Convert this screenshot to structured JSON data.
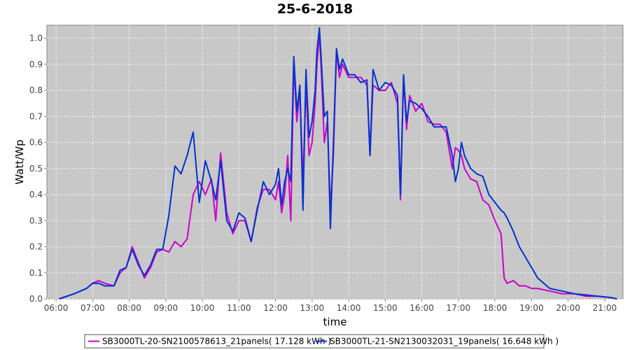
{
  "chart_data": {
    "type": "line",
    "title": "25-6-2018",
    "xlabel": "time",
    "ylabel": "Watt/Wp",
    "xlim": [
      "05:45",
      "21:30"
    ],
    "ylim": [
      0,
      1.05
    ],
    "x_ticks": [
      "06:00",
      "07:00",
      "08:00",
      "09:00",
      "10:00",
      "11:00",
      "12:00",
      "13:00",
      "14:00",
      "15:00",
      "16:00",
      "17:00",
      "18:00",
      "19:00",
      "20:00",
      "21:00"
    ],
    "y_ticks": [
      0.0,
      0.1,
      0.2,
      0.3,
      0.4,
      0.5,
      0.6,
      0.7,
      0.8,
      0.9,
      1.0
    ],
    "grid": true,
    "legend": "bottom",
    "plot_background": "#c8c8c8",
    "series": [
      {
        "name": "SB3000TL-20-SN2100578613_21panels( 17.128 kWh )",
        "color": "#cc00cc",
        "x": [
          "06:05",
          "06:30",
          "06:50",
          "07:00",
          "07:10",
          "07:20",
          "07:35",
          "07:45",
          "07:55",
          "08:05",
          "08:15",
          "08:25",
          "08:35",
          "08:45",
          "08:55",
          "09:05",
          "09:15",
          "09:25",
          "09:35",
          "09:45",
          "09:55",
          "10:05",
          "10:15",
          "10:22",
          "10:30",
          "10:40",
          "10:50",
          "11:00",
          "11:10",
          "11:20",
          "11:30",
          "11:40",
          "11:50",
          "12:00",
          "12:05",
          "12:10",
          "12:15",
          "12:20",
          "12:25",
          "12:30",
          "12:35",
          "12:40",
          "12:45",
          "12:50",
          "12:55",
          "13:00",
          "13:05",
          "13:08",
          "13:12",
          "13:15",
          "13:20",
          "13:25",
          "13:30",
          "13:35",
          "13:40",
          "13:45",
          "13:50",
          "14:00",
          "14:10",
          "14:20",
          "14:30",
          "14:35",
          "14:40",
          "14:50",
          "15:00",
          "15:10",
          "15:20",
          "15:25",
          "15:30",
          "15:35",
          "15:40",
          "15:50",
          "16:00",
          "16:10",
          "16:20",
          "16:30",
          "16:40",
          "16:50",
          "16:55",
          "17:00",
          "17:05",
          "17:10",
          "17:20",
          "17:30",
          "17:40",
          "17:50",
          "18:00",
          "18:10",
          "18:15",
          "18:20",
          "18:30",
          "18:40",
          "18:50",
          "19:00",
          "19:10",
          "19:30",
          "19:50",
          "20:10",
          "20:30",
          "20:50",
          "21:10",
          "21:20"
        ],
        "y": [
          0.0,
          0.02,
          0.04,
          0.06,
          0.07,
          0.06,
          0.05,
          0.1,
          0.12,
          0.2,
          0.14,
          0.08,
          0.12,
          0.18,
          0.19,
          0.18,
          0.22,
          0.2,
          0.23,
          0.4,
          0.45,
          0.4,
          0.46,
          0.3,
          0.56,
          0.33,
          0.25,
          0.3,
          0.3,
          0.22,
          0.35,
          0.42,
          0.42,
          0.38,
          0.45,
          0.33,
          0.4,
          0.55,
          0.3,
          0.9,
          0.68,
          0.8,
          0.45,
          0.82,
          0.55,
          0.6,
          0.75,
          0.9,
          1.02,
          0.88,
          0.6,
          0.68,
          0.35,
          0.55,
          0.95,
          0.85,
          0.9,
          0.85,
          0.85,
          0.85,
          0.82,
          0.55,
          0.82,
          0.8,
          0.8,
          0.83,
          0.75,
          0.38,
          0.85,
          0.65,
          0.78,
          0.72,
          0.75,
          0.68,
          0.67,
          0.67,
          0.64,
          0.5,
          0.58,
          0.57,
          0.55,
          0.5,
          0.46,
          0.45,
          0.38,
          0.36,
          0.3,
          0.25,
          0.08,
          0.06,
          0.07,
          0.05,
          0.05,
          0.04,
          0.04,
          0.03,
          0.02,
          0.02,
          0.01,
          0.01,
          0.005,
          0.0
        ]
      },
      {
        "name": "SB3000TL-21-SN2130032031_19panels( 16.648 kWh )",
        "color": "#0033cc",
        "x": [
          "06:05",
          "06:30",
          "06:50",
          "07:00",
          "07:10",
          "07:20",
          "07:35",
          "07:45",
          "07:55",
          "08:05",
          "08:15",
          "08:25",
          "08:35",
          "08:45",
          "08:55",
          "09:05",
          "09:15",
          "09:25",
          "09:35",
          "09:45",
          "09:55",
          "10:05",
          "10:15",
          "10:22",
          "10:30",
          "10:40",
          "10:50",
          "11:00",
          "11:10",
          "11:20",
          "11:30",
          "11:40",
          "11:50",
          "12:00",
          "12:05",
          "12:10",
          "12:15",
          "12:20",
          "12:25",
          "12:30",
          "12:35",
          "12:40",
          "12:45",
          "12:50",
          "12:55",
          "13:00",
          "13:05",
          "13:08",
          "13:12",
          "13:15",
          "13:20",
          "13:25",
          "13:30",
          "13:35",
          "13:40",
          "13:45",
          "13:50",
          "14:00",
          "14:10",
          "14:20",
          "14:30",
          "14:35",
          "14:40",
          "14:50",
          "15:00",
          "15:10",
          "15:20",
          "15:25",
          "15:30",
          "15:35",
          "15:40",
          "15:50",
          "16:00",
          "16:10",
          "16:20",
          "16:30",
          "16:40",
          "16:50",
          "16:55",
          "17:00",
          "17:05",
          "17:10",
          "17:20",
          "17:30",
          "17:40",
          "17:50",
          "18:00",
          "18:10",
          "18:15",
          "18:20",
          "18:30",
          "18:40",
          "18:50",
          "19:00",
          "19:10",
          "19:30",
          "19:50",
          "20:10",
          "20:30",
          "20:50",
          "21:10",
          "21:20"
        ],
        "y": [
          0.0,
          0.02,
          0.04,
          0.06,
          0.06,
          0.05,
          0.05,
          0.11,
          0.12,
          0.19,
          0.13,
          0.09,
          0.13,
          0.19,
          0.19,
          0.32,
          0.51,
          0.48,
          0.55,
          0.64,
          0.37,
          0.53,
          0.45,
          0.38,
          0.53,
          0.3,
          0.26,
          0.33,
          0.31,
          0.22,
          0.34,
          0.45,
          0.4,
          0.44,
          0.5,
          0.36,
          0.45,
          0.5,
          0.45,
          0.93,
          0.72,
          0.82,
          0.34,
          0.88,
          0.62,
          0.68,
          0.8,
          0.95,
          1.04,
          0.92,
          0.7,
          0.72,
          0.27,
          0.6,
          0.96,
          0.88,
          0.92,
          0.86,
          0.86,
          0.83,
          0.84,
          0.55,
          0.88,
          0.8,
          0.83,
          0.82,
          0.78,
          0.4,
          0.86,
          0.68,
          0.76,
          0.75,
          0.73,
          0.7,
          0.66,
          0.66,
          0.66,
          0.55,
          0.45,
          0.5,
          0.6,
          0.55,
          0.5,
          0.48,
          0.47,
          0.4,
          0.37,
          0.34,
          0.33,
          0.31,
          0.26,
          0.2,
          0.16,
          0.12,
          0.08,
          0.04,
          0.03,
          0.02,
          0.015,
          0.01,
          0.005,
          0.0
        ]
      }
    ]
  }
}
